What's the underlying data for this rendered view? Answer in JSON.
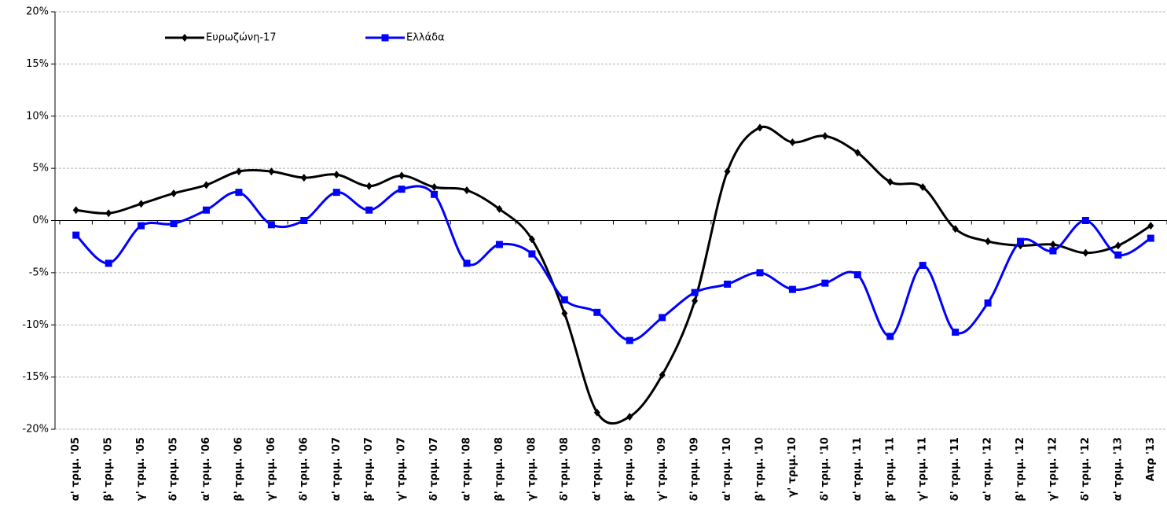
{
  "chart_data": {
    "type": "line",
    "categories": [
      "α' τριμ. '05",
      "β' τριμ. '05",
      "γ' τριμ. '05",
      "δ' τριμ. '05",
      "α' τριμ. '06",
      "β' τριμ. '06",
      "γ' τριμ. '06",
      "δ' τριμ. '06",
      "α' τριμ. '07",
      "β' τριμ. '07",
      "γ' τριμ. '07",
      "δ' τριμ. '07",
      "α' τριμ. '08",
      "β' τριμ. '08",
      "γ' τριμ. '08",
      "δ' τριμ. '08",
      "α' τριμ. '09",
      "β' τριμ. '09",
      "γ' τριμ. '09",
      "δ' τριμ. '09",
      "α' τριμ. '10",
      "β' τριμ. '10",
      "γ' τριμ.'10",
      "δ' τριμ. '10",
      "α' τριμ. '11",
      "β' τριμ. '11",
      "γ' τριμ. '11",
      "δ' τριμ. '11",
      "α' τριμ. '12",
      "β' τριμ. '12",
      "γ' τριμ. '12",
      "δ' τριμ. '12",
      "α' τριμ. '13",
      "Απρ '13"
    ],
    "series": [
      {
        "name": "Ευρωζώνη-17",
        "color": "#000000",
        "marker": "diamond",
        "values": [
          1.0,
          0.7,
          1.6,
          2.6,
          3.4,
          4.7,
          4.7,
          4.1,
          4.4,
          3.3,
          4.3,
          3.2,
          2.9,
          1.1,
          -1.8,
          -8.9,
          -18.4,
          -18.8,
          -14.8,
          -7.7,
          4.7,
          8.9,
          7.5,
          8.1,
          6.5,
          3.7,
          3.2,
          -0.8,
          -2.0,
          -2.4,
          -2.3,
          -3.1,
          -2.4,
          -0.5
        ]
      },
      {
        "name": "Ελλάδα",
        "color": "#0000ff",
        "marker": "square",
        "values": [
          -1.4,
          -4.1,
          -0.5,
          -0.3,
          1.0,
          2.7,
          -0.4,
          0.0,
          2.7,
          1.0,
          3.0,
          2.5,
          -4.1,
          -2.3,
          -3.2,
          -7.6,
          -8.8,
          -11.5,
          -9.3,
          -6.9,
          -6.1,
          -5.0,
          -6.6,
          -6.0,
          -5.2,
          -11.1,
          -4.3,
          -10.7,
          -7.9,
          -2.0,
          -2.9,
          0.0,
          -3.3,
          -1.7
        ]
      }
    ],
    "ylim": [
      -20,
      20
    ],
    "yticks": [
      {
        "value": -20,
        "label": "-20%"
      },
      {
        "value": -15,
        "label": "-15%"
      },
      {
        "value": -10,
        "label": "-10%"
      },
      {
        "value": -5,
        "label": "-5%"
      },
      {
        "value": 0,
        "label": "0%"
      },
      {
        "value": 5,
        "label": "5%"
      },
      {
        "value": 10,
        "label": "10%"
      },
      {
        "value": 15,
        "label": "15%"
      },
      {
        "value": 20,
        "label": "20%"
      }
    ],
    "grid": true,
    "smooth": true,
    "legend": "top-left"
  }
}
